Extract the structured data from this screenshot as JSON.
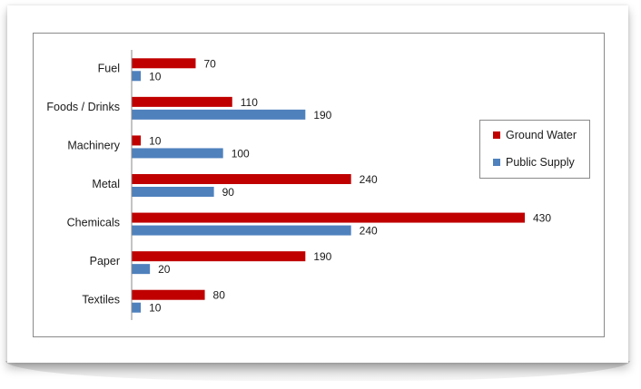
{
  "chart_data": {
    "type": "bar",
    "orientation": "horizontal",
    "categories": [
      "Fuel",
      "Foods / Drinks",
      "Machinery",
      "Metal",
      "Chemicals",
      "Paper",
      "Textiles"
    ],
    "series": [
      {
        "name": "Ground Water",
        "values": [
          70,
          110,
          10,
          240,
          430,
          190,
          80
        ],
        "color": "#c00000"
      },
      {
        "name": "Public Supply",
        "values": [
          10,
          190,
          100,
          90,
          240,
          20,
          10
        ],
        "color": "#4f81bd"
      }
    ],
    "title": "",
    "xlabel": "",
    "ylabel": "",
    "xlim": [
      0,
      430
    ],
    "grid": false,
    "legend_position": "right"
  }
}
